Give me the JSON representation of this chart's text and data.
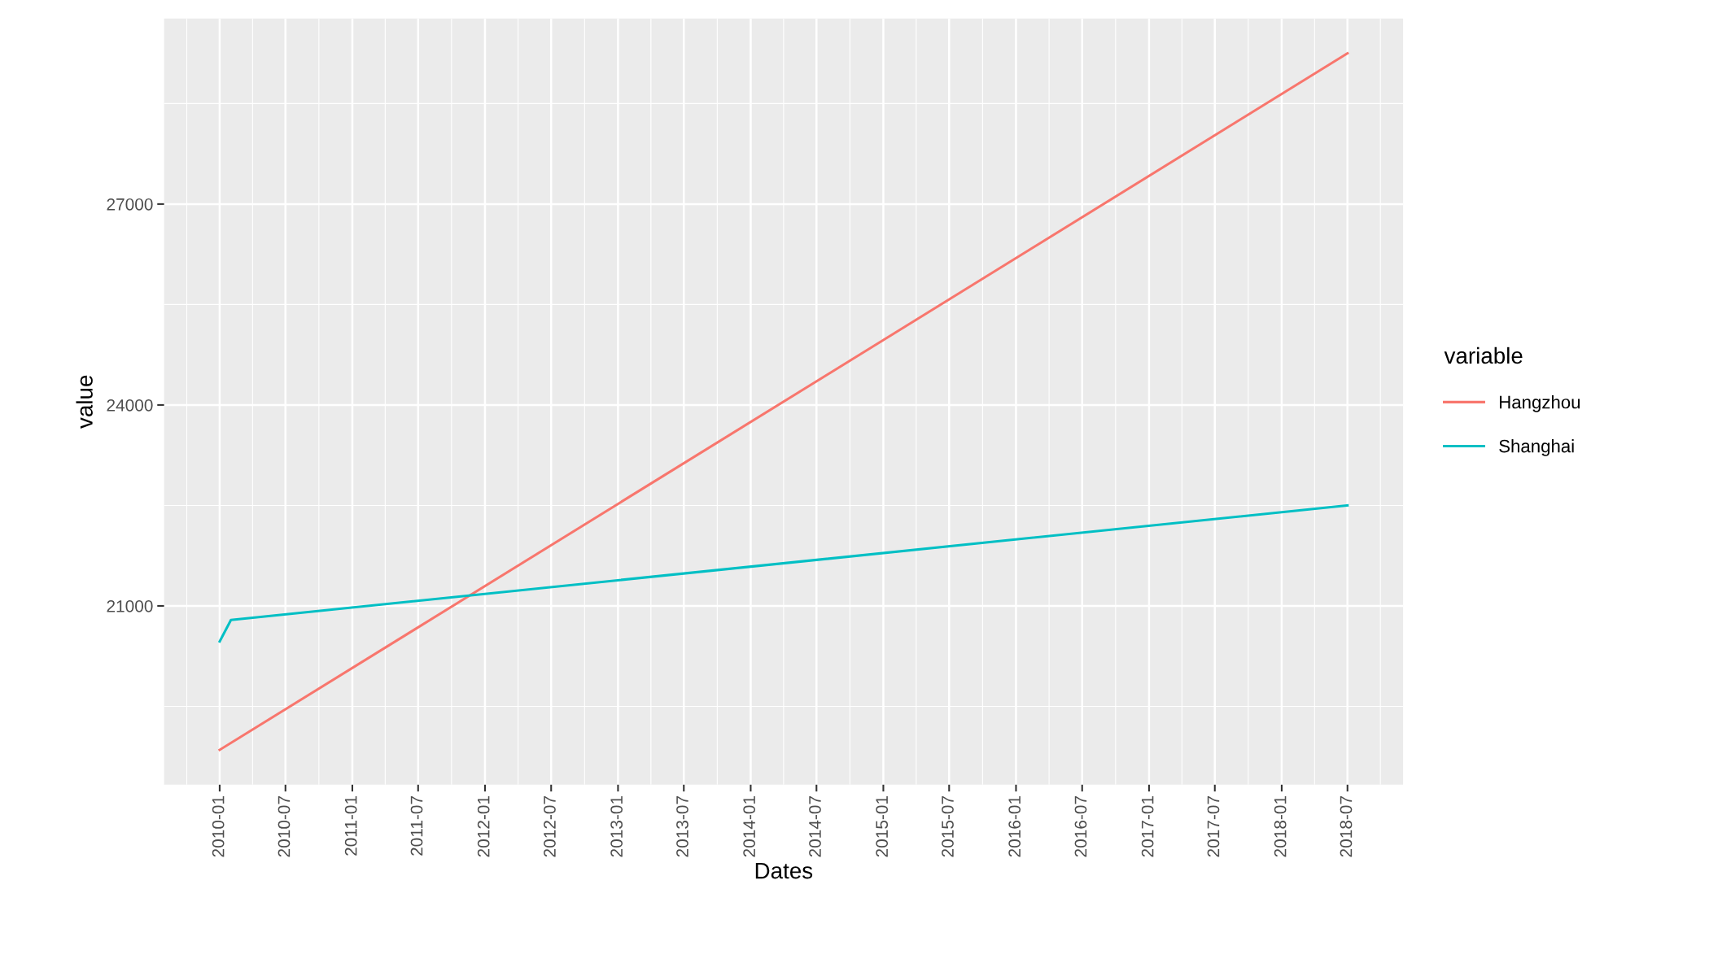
{
  "chart_data": {
    "type": "line",
    "xlabel": "Dates",
    "ylabel": "value",
    "legend_title": "variable",
    "legend": "right",
    "grid": true,
    "line_style": "solid",
    "marker": "none",
    "xlim": [
      "2009-08",
      "2018-12"
    ],
    "xticks": [
      "2010-01",
      "2010-07",
      "2011-01",
      "2011-07",
      "2012-01",
      "2012-07",
      "2013-01",
      "2013-07",
      "2014-01",
      "2014-07",
      "2015-01",
      "2015-07",
      "2016-01",
      "2016-07",
      "2017-01",
      "2017-07",
      "2018-01",
      "2018-07"
    ],
    "ylim": [
      18330,
      29770
    ],
    "yticks": [
      21000,
      24000,
      27000
    ],
    "series": [
      {
        "name": "Hangzhou",
        "color": "#f8766d",
        "x": [
          "2010-01",
          "2018-07"
        ],
        "values": [
          18850,
          29250
        ]
      },
      {
        "name": "Shanghai",
        "color": "#00bfc4",
        "x": [
          "2010-01",
          "2010-02",
          "2018-07"
        ],
        "values": [
          20470,
          20790,
          22500
        ]
      }
    ]
  }
}
